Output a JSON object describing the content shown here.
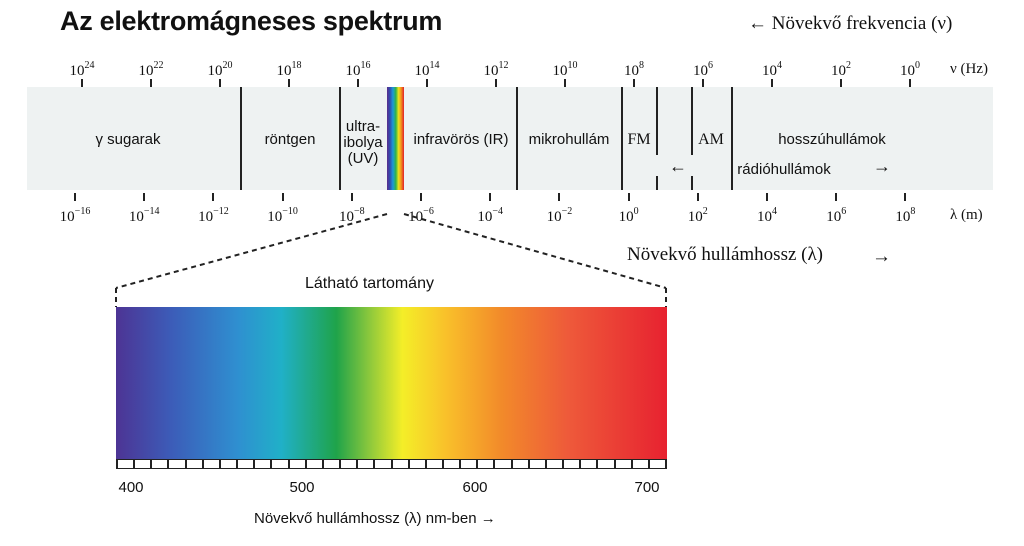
{
  "title": "Az elektromágneses spektrum",
  "frequency_direction": "← Növekvő frekvencia (ν)",
  "frequency_axis": {
    "unit": "ν (Hz)",
    "ticks": [
      {
        "base": "10",
        "exp": "24"
      },
      {
        "base": "10",
        "exp": "22"
      },
      {
        "base": "10",
        "exp": "20"
      },
      {
        "base": "10",
        "exp": "18"
      },
      {
        "base": "10",
        "exp": "16"
      },
      {
        "base": "10",
        "exp": "14"
      },
      {
        "base": "10",
        "exp": "12"
      },
      {
        "base": "10",
        "exp": "10"
      },
      {
        "base": "10",
        "exp": "8"
      },
      {
        "base": "10",
        "exp": "6"
      },
      {
        "base": "10",
        "exp": "4"
      },
      {
        "base": "10",
        "exp": "2"
      },
      {
        "base": "10",
        "exp": "0"
      }
    ]
  },
  "regions": {
    "gamma": "γ sugarak",
    "xray": "röntgen",
    "uv_line1": "ultra-",
    "uv_line2": "ibolya",
    "uv_line3": "(UV)",
    "ir": "infravörös (IR)",
    "microwave": "mikrohullám",
    "fm": "FM",
    "am": "AM",
    "longwave": "hosszúhullámok",
    "radio_arrow_left": "←",
    "radio": "rádióhullámok",
    "radio_arrow_right": "→"
  },
  "wavelength_axis": {
    "unit": "λ (m)",
    "ticks": [
      {
        "base": "10",
        "exp": "−16"
      },
      {
        "base": "10",
        "exp": "−14"
      },
      {
        "base": "10",
        "exp": "−12"
      },
      {
        "base": "10",
        "exp": "−10"
      },
      {
        "base": "10",
        "exp": "−8"
      },
      {
        "base": "10",
        "exp": "−6"
      },
      {
        "base": "10",
        "exp": "−4"
      },
      {
        "base": "10",
        "exp": "−2"
      },
      {
        "base": "10",
        "exp": "0"
      },
      {
        "base": "10",
        "exp": "2"
      },
      {
        "base": "10",
        "exp": "4"
      },
      {
        "base": "10",
        "exp": "6"
      },
      {
        "base": "10",
        "exp": "8"
      }
    ]
  },
  "wavelength_direction": "Növekvő hullámhossz (λ)",
  "wavelength_direction_arrow": "→",
  "visible": {
    "title": "Látható tartomány",
    "scale_labels": [
      "400",
      "500",
      "600",
      "700"
    ],
    "direction": "Növekvő hullámhossz (λ) nm-ben  →"
  }
}
